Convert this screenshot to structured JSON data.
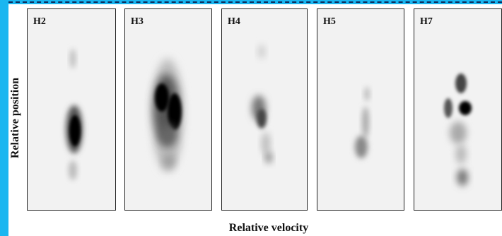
{
  "figure": {
    "panels": [
      {
        "id": "H2",
        "label": "H2"
      },
      {
        "id": "H3",
        "label": "H3"
      },
      {
        "id": "H4",
        "label": "H4"
      },
      {
        "id": "H5",
        "label": "H5"
      },
      {
        "id": "H7",
        "label": "H7"
      }
    ],
    "ylabel": "Relative position",
    "xlabel": "Relative velocity"
  },
  "colors": {
    "border": "#1ab6f0",
    "ink": "#111111",
    "panel_bg": "#f2f2f2"
  }
}
